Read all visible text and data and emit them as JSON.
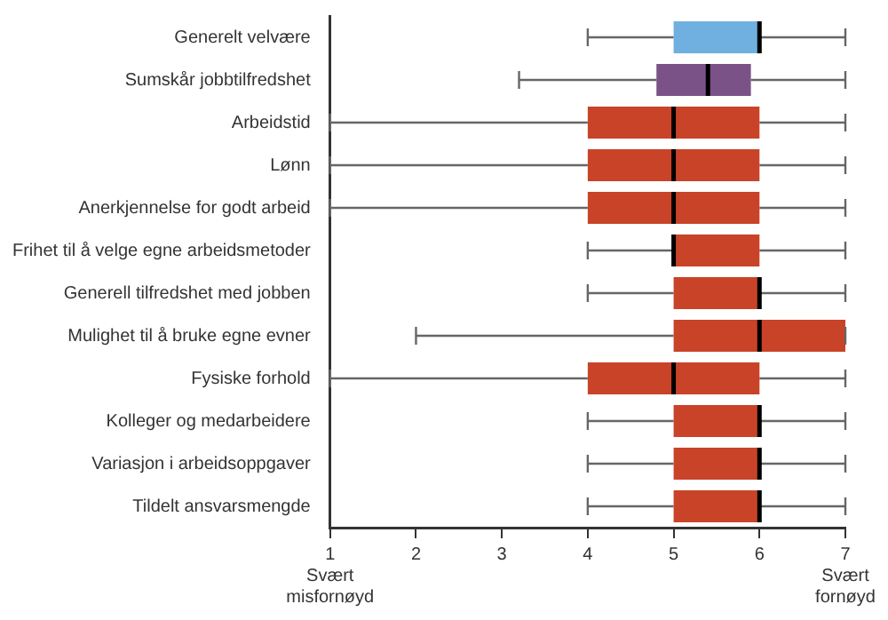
{
  "chart_data": {
    "type": "box",
    "orientation": "horizontal",
    "categories": [
      "Generelt velvære",
      "Sumskår jobbtilfredshet",
      "Arbeidstid",
      "Lønn",
      "Anerkjennelse for godt arbeid",
      "Frihet til å velge egne arbeidsmetoder",
      "Generell tilfredshet med jobben",
      "Mulighet til å bruke egne evner",
      "Fysiske forhold",
      "Kolleger og medarbeidere",
      "Variasjon i arbeidsoppgaver",
      "Tildelt ansvarsmengde"
    ],
    "colors": [
      "#6fb0e0",
      "#7a5288",
      "#c94328",
      "#c94328",
      "#c94328",
      "#c94328",
      "#c94328",
      "#c94328",
      "#c94328",
      "#c94328",
      "#c94328",
      "#c94328"
    ],
    "boxes": [
      {
        "low": 4,
        "q1": 5,
        "median": 6,
        "q3": 6,
        "high": 7
      },
      {
        "low": 3.2,
        "q1": 4.8,
        "median": 5.4,
        "q3": 5.9,
        "high": 7
      },
      {
        "low": 1,
        "q1": 4,
        "median": 5,
        "q3": 6,
        "high": 7
      },
      {
        "low": 1,
        "q1": 4,
        "median": 5,
        "q3": 6,
        "high": 7
      },
      {
        "low": 1,
        "q1": 4,
        "median": 5,
        "q3": 6,
        "high": 7
      },
      {
        "low": 4,
        "q1": 5,
        "median": 5,
        "q3": 6,
        "high": 7
      },
      {
        "low": 4,
        "q1": 5,
        "median": 6,
        "q3": 6,
        "high": 7
      },
      {
        "low": 2,
        "q1": 5,
        "median": 6,
        "q3": 7,
        "high": 7
      },
      {
        "low": 1,
        "q1": 4,
        "median": 5,
        "q3": 6,
        "high": 7
      },
      {
        "low": 4,
        "q1": 5,
        "median": 6,
        "q3": 6,
        "high": 7
      },
      {
        "low": 4,
        "q1": 5,
        "median": 6,
        "q3": 6,
        "high": 7
      },
      {
        "low": 4,
        "q1": 5,
        "median": 6,
        "q3": 6,
        "high": 7
      }
    ],
    "xlim": [
      1,
      7
    ],
    "xticks": [
      {
        "value": 1,
        "label": "1\nSvært\nmisfornøyd"
      },
      2,
      3,
      4,
      5,
      6,
      {
        "value": 7,
        "label": "7\nSvært\nfornøyd"
      }
    ],
    "grid": false,
    "legend": false
  }
}
